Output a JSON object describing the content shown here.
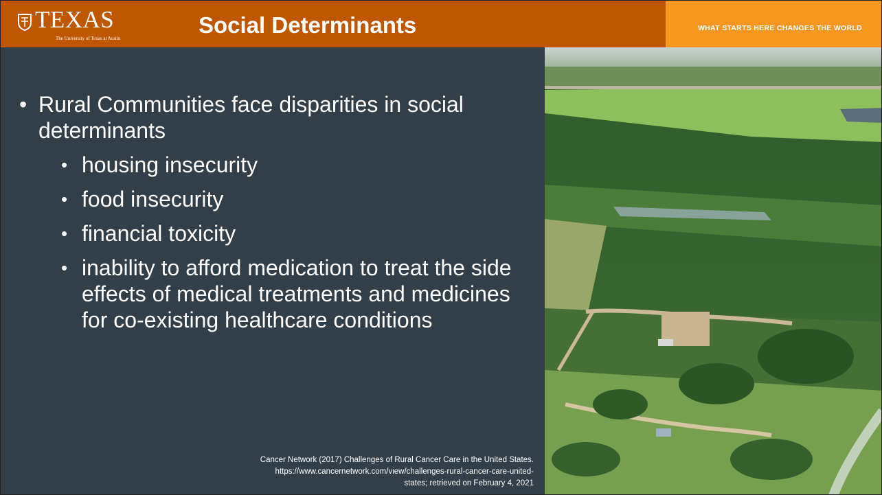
{
  "header": {
    "logo": "TEXAS",
    "logo_subtitle": "The University of Texas at Austin",
    "title": "Social Determinants",
    "tagline": "WHAT STARTS HERE CHANGES THE WORLD"
  },
  "bullets": [
    {
      "text": "Rural Communities face disparities in social determinants",
      "sub": [
        "housing insecurity",
        "food insecurity",
        "financial toxicity",
        "inability to afford medication to treat the side effects of medical treatments and medicines for co-existing healthcare conditions"
      ]
    }
  ],
  "citation": [
    "Cancer Network (2017) Challenges of Rural Cancer Care in the United States.",
    "https://www.cancernetwork.com/view/challenges-rural-cancer-care-united-",
    "states; retrieved on February 4, 2021"
  ]
}
